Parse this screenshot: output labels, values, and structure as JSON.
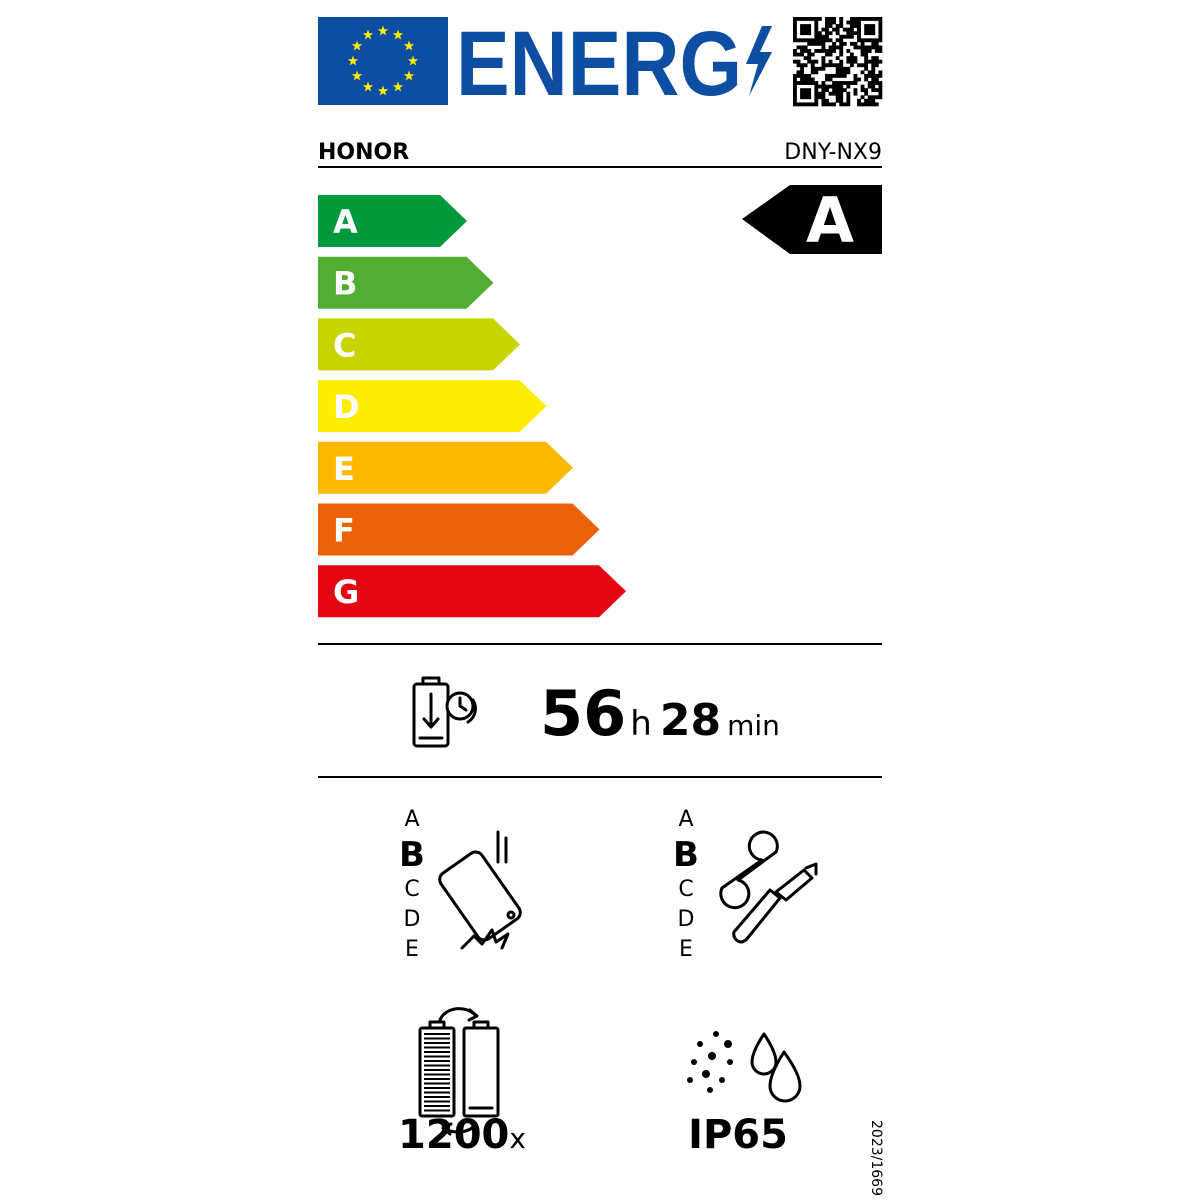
{
  "header": {
    "title": "ENERG",
    "brand": "HONOR",
    "model": "DNY-NX9"
  },
  "scale": {
    "classes": [
      {
        "letter": "A",
        "color": "#009a3d"
      },
      {
        "letter": "B",
        "color": "#52ae32"
      },
      {
        "letter": "C",
        "color": "#c8d400"
      },
      {
        "letter": "D",
        "color": "#ffed00"
      },
      {
        "letter": "E",
        "color": "#fbba00"
      },
      {
        "letter": "F",
        "color": "#eb6209"
      },
      {
        "letter": "G",
        "color": "#e30613"
      }
    ],
    "rating": "A"
  },
  "battery_endurance": {
    "hours": "56",
    "hours_unit": "h",
    "minutes": "28",
    "minutes_unit": "min"
  },
  "drop_resistance": {
    "classes": [
      "A",
      "B",
      "C",
      "D",
      "E"
    ],
    "rating": "B"
  },
  "repairability": {
    "classes": [
      "A",
      "B",
      "C",
      "D",
      "E"
    ],
    "rating": "B"
  },
  "battery_cycles": {
    "value": "1200",
    "unit": "x"
  },
  "ingress_protection": "IP65",
  "regulation": "2023/1669"
}
